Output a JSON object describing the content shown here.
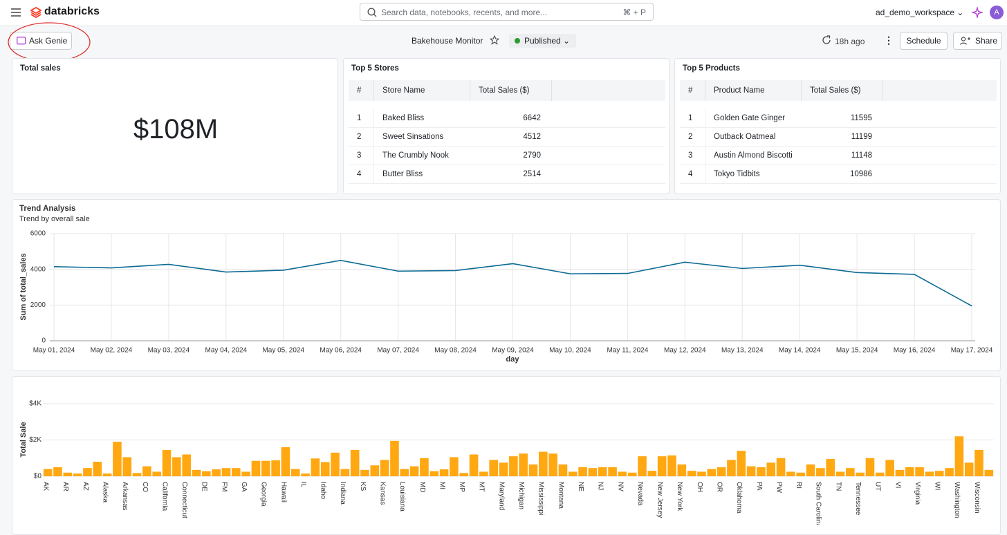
{
  "header": {
    "brand": "databricks",
    "search_placeholder": "Search data, notebooks, recents, and more...",
    "search_shortcut": "⌘ + P",
    "workspace": "ad_demo_workspace",
    "avatar": "A"
  },
  "toolbar": {
    "ask_button": "Ask Genie",
    "dashboard_title": "Bakehouse Monitor",
    "status": "Published",
    "refreshed": "18h ago",
    "schedule_button": "Schedule",
    "share_button": "Share"
  },
  "kpi": {
    "title": "Total sales",
    "value": "$108M"
  },
  "tables": [
    {
      "title": "Top 5 Stores",
      "columns": [
        "#",
        "Store Name",
        "Total Sales ($)"
      ],
      "rows": [
        [
          1,
          "Baked Bliss",
          6642
        ],
        [
          2,
          "Sweet Sinsations",
          4512
        ],
        [
          3,
          "The Crumbly Nook",
          2790
        ],
        [
          4,
          "Butter Bliss",
          2514
        ]
      ]
    },
    {
      "title": "Top 5 Products",
      "columns": [
        "#",
        "Product Name",
        "Total Sales ($)"
      ],
      "rows": [
        [
          1,
          "Golden Gate Ginger",
          11595
        ],
        [
          2,
          "Outback Oatmeal",
          11199
        ],
        [
          3,
          "Austin Almond Biscotti",
          11148
        ],
        [
          4,
          "Tokyo Tidbits",
          10986
        ]
      ]
    }
  ],
  "chart_data": [
    {
      "type": "line",
      "title": "Trend Analysis",
      "subtitle": "Trend by overall sale",
      "x_label": "day",
      "y_label": "Sum of total_sales",
      "color": "#0b6a94",
      "grid": true,
      "categories": [
        "May 01, 2024",
        "May 02, 2024",
        "May 03, 2024",
        "May 04, 2024",
        "May 05, 2024",
        "May 06, 2024",
        "May 07, 2024",
        "May 08, 2024",
        "May 09, 2024",
        "May 10, 2024",
        "May 11, 2024",
        "May 12, 2024",
        "May 13, 2024",
        "May 14, 2024",
        "May 15, 2024",
        "May 16, 2024",
        "May 17, 2024"
      ],
      "values": [
        4150,
        4080,
        4280,
        3850,
        3950,
        4500,
        3900,
        3930,
        4320,
        3750,
        3770,
        4400,
        4050,
        4230,
        3820,
        3720,
        1950
      ],
      "ylim": [
        0,
        6000
      ],
      "yticks": [
        0,
        2000,
        4000,
        6000
      ]
    },
    {
      "type": "bar",
      "y_label": "Total Sale",
      "color": "#ffa812",
      "grid": true,
      "categories": [
        "AK",
        null,
        "AR",
        null,
        "AZ",
        null,
        "Alaska",
        null,
        "Arkansas",
        null,
        "CO",
        null,
        "California",
        null,
        "Connecticut",
        null,
        "DE",
        null,
        "FM",
        null,
        "GA",
        null,
        "Georgia",
        null,
        "Hawaii",
        null,
        "IL",
        null,
        "Idaho",
        null,
        "Indiana",
        null,
        "KS",
        null,
        "Kansas",
        null,
        "Louisiana",
        null,
        "MD",
        null,
        "MI",
        null,
        "MP",
        null,
        "MT",
        null,
        "Maryland",
        null,
        "Michigan",
        null,
        "Mississippi",
        null,
        "Montana",
        null,
        "NE",
        null,
        "NJ",
        null,
        "NV",
        null,
        "Nevada",
        null,
        "New Jersey",
        null,
        "New York",
        null,
        "OH",
        null,
        "OR",
        null,
        "Oklahoma",
        null,
        "PA",
        null,
        "PW",
        null,
        "RI",
        null,
        "South Carolina",
        null,
        "TN",
        null,
        "Tennessee",
        null,
        "UT",
        null,
        "VI",
        null,
        "Virginia",
        null,
        "WI",
        null,
        "Washington",
        null,
        "Wisconsin",
        null
      ],
      "values": [
        400,
        500,
        200,
        150,
        450,
        800,
        150,
        1900,
        1050,
        180,
        550,
        250,
        1450,
        1050,
        1200,
        350,
        280,
        380,
        450,
        450,
        250,
        850,
        850,
        880,
        1600,
        400,
        150,
        980,
        780,
        1300,
        400,
        1450,
        350,
        600,
        900,
        1950,
        400,
        550,
        1000,
        280,
        380,
        1050,
        180,
        1200,
        250,
        900,
        750,
        1100,
        1250,
        650,
        1350,
        1250,
        650,
        250,
        500,
        450,
        500,
        500,
        250,
        200,
        1100,
        300,
        1100,
        1150,
        650,
        300,
        250,
        400,
        500,
        900,
        1400,
        550,
        500,
        750,
        1000,
        250,
        200,
        650,
        450,
        950,
        250,
        450,
        200,
        1000,
        200,
        900,
        350,
        500,
        500,
        250,
        300,
        450,
        2200,
        750,
        1450,
        350
      ],
      "ylim": [
        0,
        4000
      ],
      "yticks": [
        {
          "value": 0,
          "label": "$0"
        },
        {
          "value": 2000,
          "label": "$2K"
        },
        {
          "value": 4000,
          "label": "$4K"
        }
      ]
    }
  ]
}
